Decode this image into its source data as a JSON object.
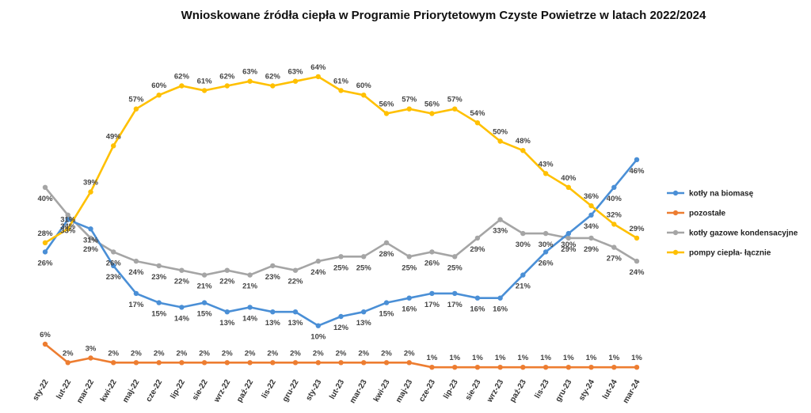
{
  "chart_data": {
    "type": "line",
    "title": "Wnioskowane źródła ciepła w Programie Priorytetowym Czyste Powietrze w latach 2022/2024",
    "categories": [
      "sty-22",
      "lut-22",
      "mar-22",
      "kwi-22",
      "maj-22",
      "cze-22",
      "lip-22",
      "sie-22",
      "wrz-22",
      "paź-22",
      "lis-22",
      "gru-22",
      "sty-23",
      "lut-23",
      "mar-23",
      "kwi-23",
      "maj-23",
      "cze-23",
      "lip-23",
      "sie-23",
      "wrz-23",
      "paź-23",
      "lis-23",
      "gru-23",
      "sty-24",
      "lut-24",
      "mar-24"
    ],
    "value_format": "percent",
    "ylim": [
      0,
      70
    ],
    "grid": false,
    "legend_position": "right",
    "series": [
      {
        "name": "kotły na biomasę",
        "color": "#4a8fd6",
        "values": [
          26,
          33,
          31,
          23,
          17,
          15,
          14,
          15,
          13,
          14,
          13,
          13,
          10,
          12,
          13,
          15,
          16,
          17,
          17,
          16,
          16,
          21,
          26,
          30,
          34,
          40,
          46
        ]
      },
      {
        "name": "pozostałe",
        "color": "#ed7d31",
        "values": [
          6,
          2,
          3,
          2,
          2,
          2,
          2,
          2,
          2,
          2,
          2,
          2,
          2,
          2,
          2,
          2,
          2,
          1,
          1,
          1,
          1,
          1,
          1,
          1,
          1,
          1,
          1
        ]
      },
      {
        "name": "kotły gazowe kondensacyjne",
        "color": "#a5a5a5",
        "values": [
          40,
          34,
          29,
          26,
          24,
          23,
          22,
          21,
          22,
          21,
          23,
          22,
          24,
          25,
          25,
          28,
          25,
          26,
          25,
          29,
          33,
          30,
          30,
          29,
          29,
          27,
          24
        ]
      },
      {
        "name": "pompy ciepła- łącznie",
        "color": "#ffc000",
        "values": [
          28,
          31,
          39,
          49,
          57,
          60,
          62,
          61,
          62,
          63,
          62,
          63,
          64,
          61,
          60,
          56,
          57,
          56,
          57,
          54,
          50,
          48,
          43,
          40,
          36,
          32,
          29
        ]
      }
    ]
  }
}
